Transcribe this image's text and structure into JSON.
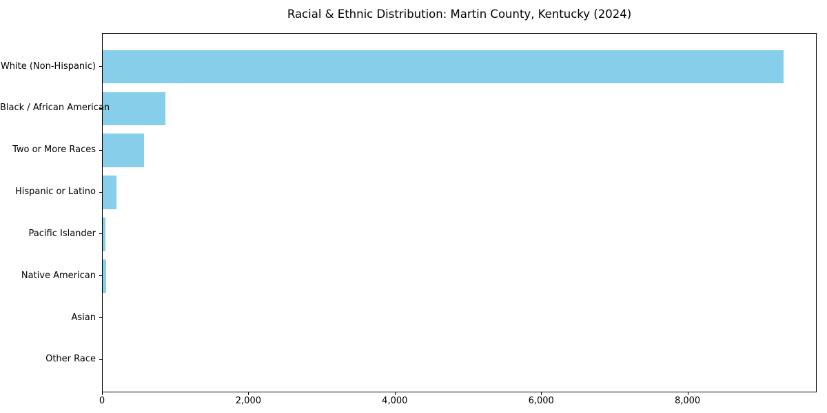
{
  "chart_data": {
    "type": "bar",
    "orientation": "horizontal",
    "title": "Racial & Ethnic Distribution: Martin County, Kentucky (2024)",
    "categories": [
      "White (Non-Hispanic)",
      "Black / African American",
      "Two or More Races",
      "Hispanic or Latino",
      "Pacific Islander",
      "Native American",
      "Asian",
      "Other Race"
    ],
    "values": [
      9300,
      855,
      565,
      190,
      40,
      50,
      0,
      0
    ],
    "xlabel": "",
    "ylabel": "",
    "xlim": [
      0,
      9765
    ],
    "x_ticks": [
      0,
      2000,
      4000,
      6000,
      8000
    ],
    "x_tick_labels": [
      "0",
      "2,000",
      "4,000",
      "6,000",
      "8,000"
    ],
    "bar_color": "#87CEEB",
    "grid": false,
    "legend_position": "none"
  }
}
